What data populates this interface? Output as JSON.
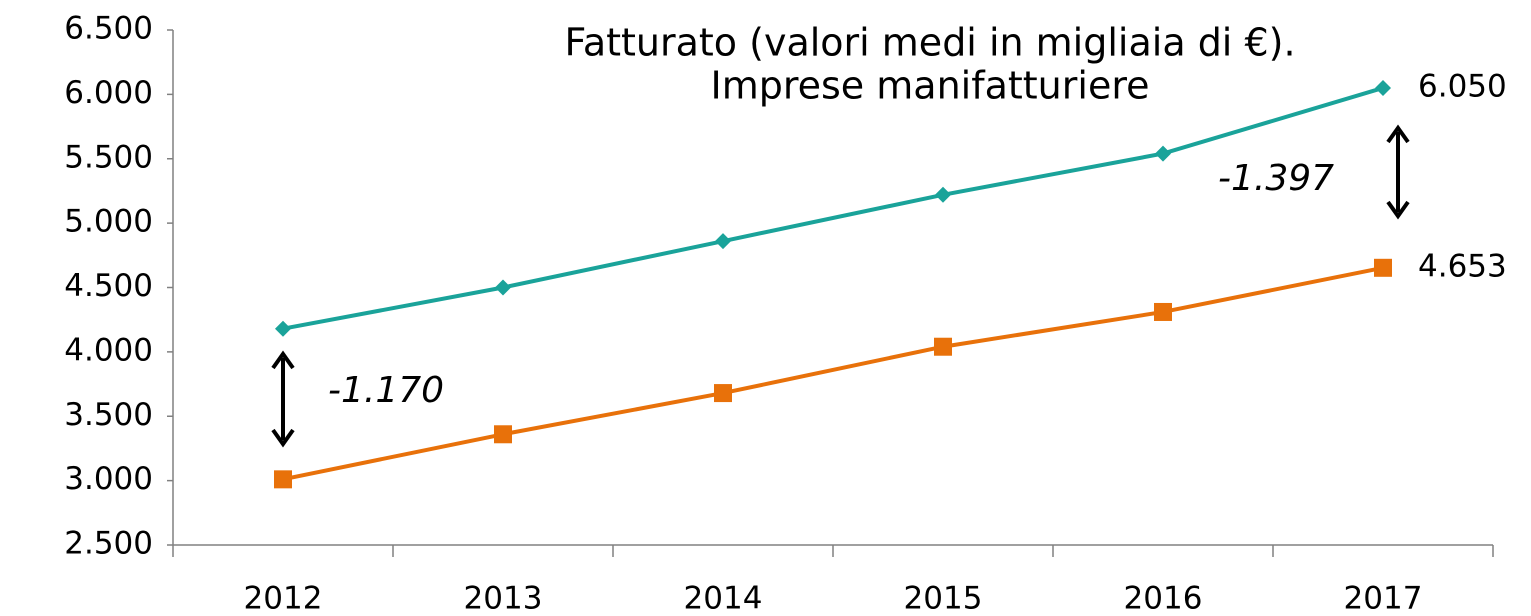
{
  "chart_data": {
    "type": "line",
    "title": [
      "Fatturato (valori medi in migliaia di €).",
      "Imprese manifatturiere"
    ],
    "categories": [
      "2012",
      "2013",
      "2014",
      "2015",
      "2016",
      "2017"
    ],
    "series": [
      {
        "color": "#1aa39a",
        "marker": "diamond",
        "values": [
          4180,
          4500,
          4860,
          5220,
          5540,
          6050
        ],
        "value_labels": [
          null,
          null,
          null,
          null,
          null,
          "6.050"
        ]
      },
      {
        "color": "#e8710a",
        "marker": "square",
        "values": [
          3010,
          3360,
          3680,
          4040,
          4310,
          4653
        ],
        "value_labels": [
          null,
          null,
          null,
          null,
          null,
          "4.653"
        ]
      }
    ],
    "annotations": [
      "-1.170",
      "-1.397"
    ],
    "ylim": [
      2500,
      6500
    ],
    "yticks": [
      {
        "value": 2500,
        "label": "2.500"
      },
      {
        "value": 3000,
        "label": "3.000"
      },
      {
        "value": 3500,
        "label": "3.500"
      },
      {
        "value": 4000,
        "label": "4.000"
      },
      {
        "value": 4500,
        "label": "4.500"
      },
      {
        "value": 5000,
        "label": "5.000"
      },
      {
        "value": 5500,
        "label": "5.500"
      },
      {
        "value": 6000,
        "label": "6.000"
      },
      {
        "value": 6500,
        "label": "6.500"
      }
    ],
    "grid": false
  }
}
